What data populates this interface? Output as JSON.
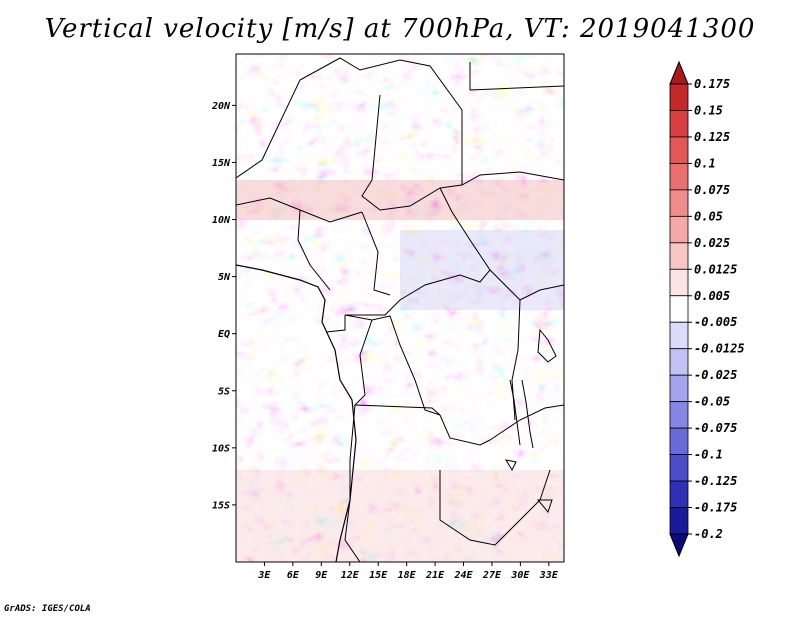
{
  "title": "Vertical velocity [m/s] at 700hPa, VT: 2019041300",
  "credit": "GrADS: IGES/COLA",
  "map": {
    "lat_labels": [
      {
        "label": "20N",
        "lat": 20
      },
      {
        "label": "15N",
        "lat": 15
      },
      {
        "label": "10N",
        "lat": 10
      },
      {
        "label": "5N",
        "lat": 5
      },
      {
        "label": "EQ",
        "lat": 0
      },
      {
        "label": "5S",
        "lat": -5
      },
      {
        "label": "10S",
        "lat": -10
      },
      {
        "label": "15S",
        "lat": -15
      }
    ],
    "lon_labels": [
      {
        "label": "3E",
        "lon": 3
      },
      {
        "label": "6E",
        "lon": 6
      },
      {
        "label": "9E",
        "lon": 9
      },
      {
        "label": "12E",
        "lon": 12
      },
      {
        "label": "15E",
        "lon": 15
      },
      {
        "label": "18E",
        "lon": 18
      },
      {
        "label": "21E",
        "lon": 21
      },
      {
        "label": "24E",
        "lon": 24
      },
      {
        "label": "27E",
        "lon": 27
      },
      {
        "label": "30E",
        "lon": 30
      },
      {
        "label": "33E",
        "lon": 33
      }
    ]
  },
  "colorbar": {
    "levels": [
      "0.175",
      "0.15",
      "0.125",
      "0.1",
      "0.075",
      "0.05",
      "0.025",
      "0.0125",
      "0.005",
      "-0.005",
      "-0.0125",
      "-0.025",
      "-0.05",
      "-0.075",
      "-0.1",
      "-0.125",
      "-0.175",
      "-0.2"
    ],
    "colors": [
      "#aa1a1a",
      "#c22a2a",
      "#d64040",
      "#e05858",
      "#e87070",
      "#ef8c8c",
      "#f5a8a8",
      "#f9c6c6",
      "#fde4e4",
      "#ffffff",
      "#dcdcfa",
      "#c2c2f5",
      "#a4a4ee",
      "#8686e4",
      "#6a6ad8",
      "#4c4cc8",
      "#3030b4",
      "#1a1a9a",
      "#0a0a7a"
    ]
  }
}
